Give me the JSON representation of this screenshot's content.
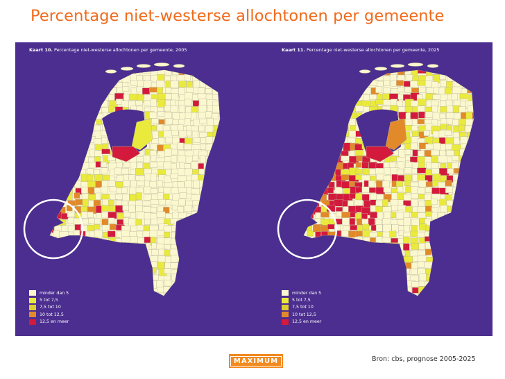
{
  "slide": {
    "title": "Percentage niet-westerse allochtonen per gemeente",
    "source": "Bron: cbs, prognose 2005-2025",
    "logo_text": "MAXIMUM"
  },
  "colors": {
    "title": "#f06a1a",
    "map_background": "#4b2e8f",
    "logo_background": "#f28a1f"
  },
  "maps": [
    {
      "caption_bold": "Kaart 10.",
      "caption_text": "Percentage niet-westerse allochtonen per gemeente, 2005",
      "highlight": "Zeeland circled"
    },
    {
      "caption_bold": "Kaart 11.",
      "caption_text": "Percentage niet-westerse allochtonen per gemeente, 2025",
      "highlight": "Zeeland circled"
    }
  ],
  "legend": [
    {
      "label": "minder dan 5",
      "color": "#fbf8cf"
    },
    {
      "label": "5 tot 7,5",
      "color": "#eaea3c"
    },
    {
      "label": "7,5 tot 10",
      "color": "#dfcf2e"
    },
    {
      "label": "10 tot 12,5",
      "color": "#e2892a"
    },
    {
      "label": "12,5 en meer",
      "color": "#d41a3c"
    }
  ]
}
